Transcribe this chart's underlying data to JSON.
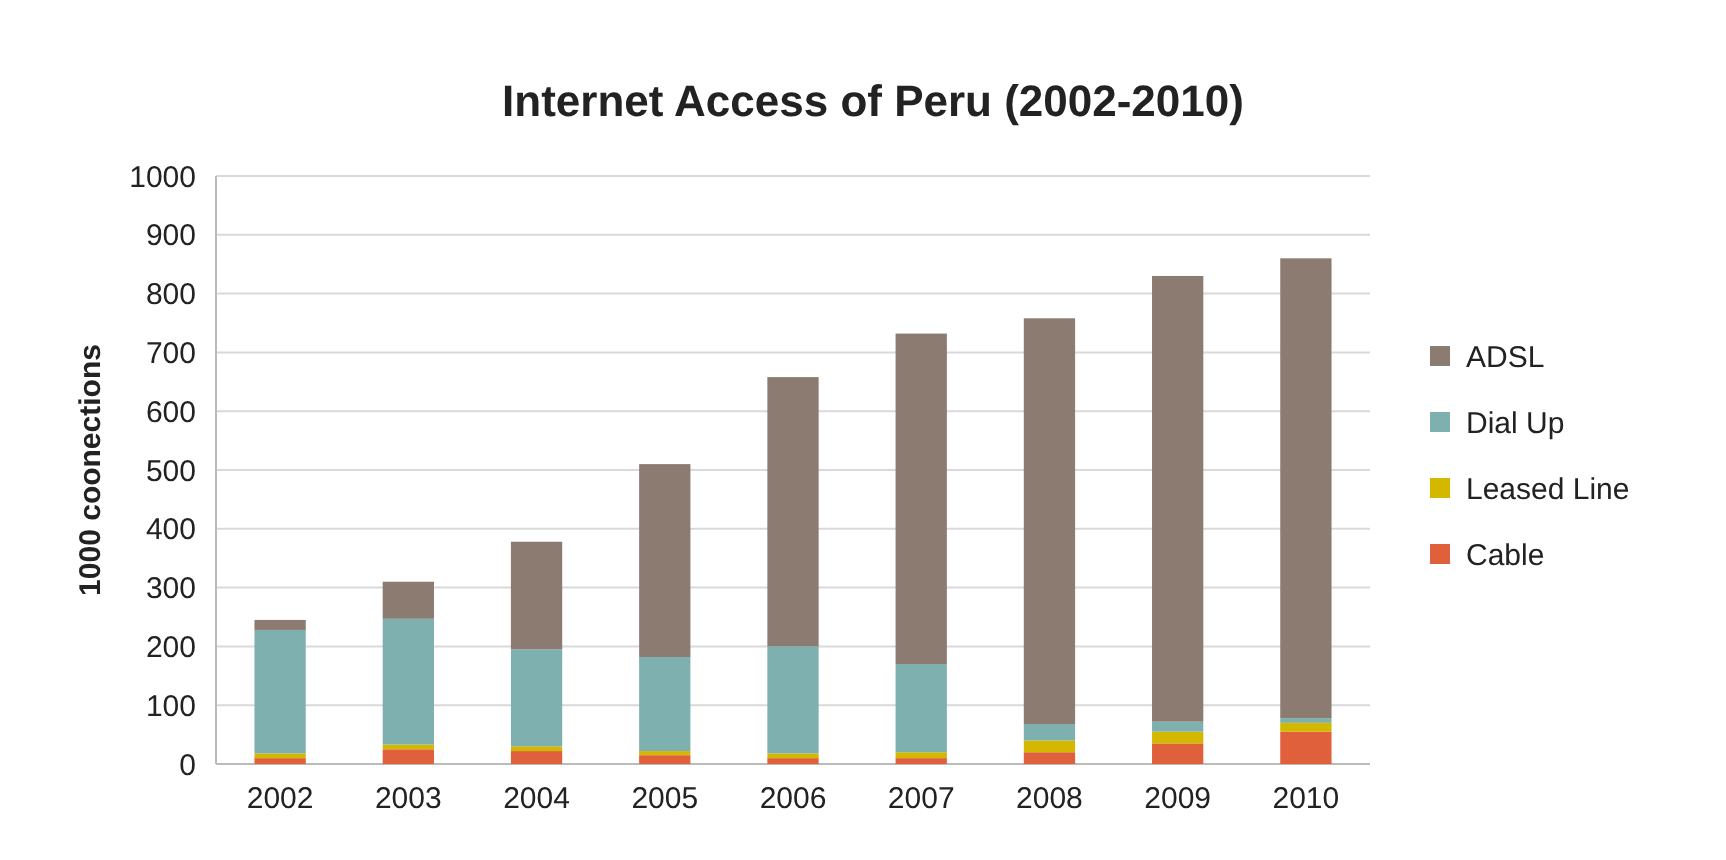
{
  "chart_data": {
    "type": "bar",
    "title": "Internet Access of Peru (2002-2010)",
    "ylabel": "1000 coonections",
    "categories": [
      "2002",
      "2003",
      "2004",
      "2005",
      "2006",
      "2007",
      "2008",
      "2009",
      "2010"
    ],
    "stacked": true,
    "series": [
      {
        "name": "Cable",
        "color": "#e0603c",
        "values": [
          10,
          25,
          22,
          15,
          10,
          10,
          20,
          35,
          55
        ]
      },
      {
        "name": "Leased Line",
        "color": "#d4b800",
        "values": [
          8,
          8,
          8,
          7,
          8,
          10,
          20,
          20,
          15
        ]
      },
      {
        "name": "Dial Up",
        "color": "#7fb0b0",
        "values": [
          210,
          214,
          165,
          160,
          182,
          150,
          28,
          17,
          8
        ]
      },
      {
        "name": "ADSL",
        "color": "#8c7b70",
        "values": [
          17,
          63,
          183,
          328,
          458,
          562,
          690,
          758,
          782
        ]
      }
    ],
    "ylim": [
      0,
      1000
    ],
    "yticks": [
      0,
      100,
      200,
      300,
      400,
      500,
      600,
      700,
      800,
      900,
      1000
    ],
    "grid": "y",
    "legend": "right"
  }
}
